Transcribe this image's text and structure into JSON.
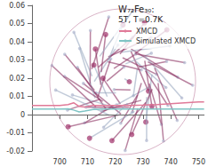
{
  "chart_data": {
    "type": "line",
    "title": "W₇₂Fe₃₀:",
    "subtitle": "5T, T=0.7K",
    "series": [
      {
        "name": "XMCD",
        "color": "#e07a98",
        "x": [
          690,
          695,
          700,
          703,
          705,
          707,
          709,
          712,
          715,
          720,
          725,
          730,
          735,
          740,
          745,
          750,
          752
        ],
        "values": [
          0.005,
          0.005,
          0.005,
          0.0055,
          0.0065,
          0.0045,
          0.0042,
          0.005,
          0.005,
          0.005,
          0.005,
          0.0052,
          0.0055,
          0.006,
          0.0065,
          0.007,
          0.007
        ]
      },
      {
        "name": "Simulated XMCD",
        "color": "#7fc4c4",
        "x": [
          690,
          695,
          700,
          703,
          705,
          707,
          709,
          712,
          715,
          720,
          725,
          730,
          735,
          740,
          745,
          750,
          752
        ],
        "values": [
          0.003,
          0.003,
          0.003,
          0.0032,
          0.0025,
          0.0015,
          0.002,
          0.0028,
          0.003,
          0.003,
          0.003,
          0.003,
          0.003,
          0.003,
          0.003,
          0.003,
          0.003
        ]
      }
    ],
    "xlim": [
      690,
      752
    ],
    "xticks": [
      700,
      710,
      720,
      730,
      740,
      750
    ],
    "ylim": [
      -0.02,
      0.06
    ],
    "yticks": [
      -0.02,
      -0.01,
      0,
      0.01,
      0.02,
      0.03,
      0.04,
      0.05,
      0.06
    ],
    "legend": "top",
    "grid": false
  }
}
